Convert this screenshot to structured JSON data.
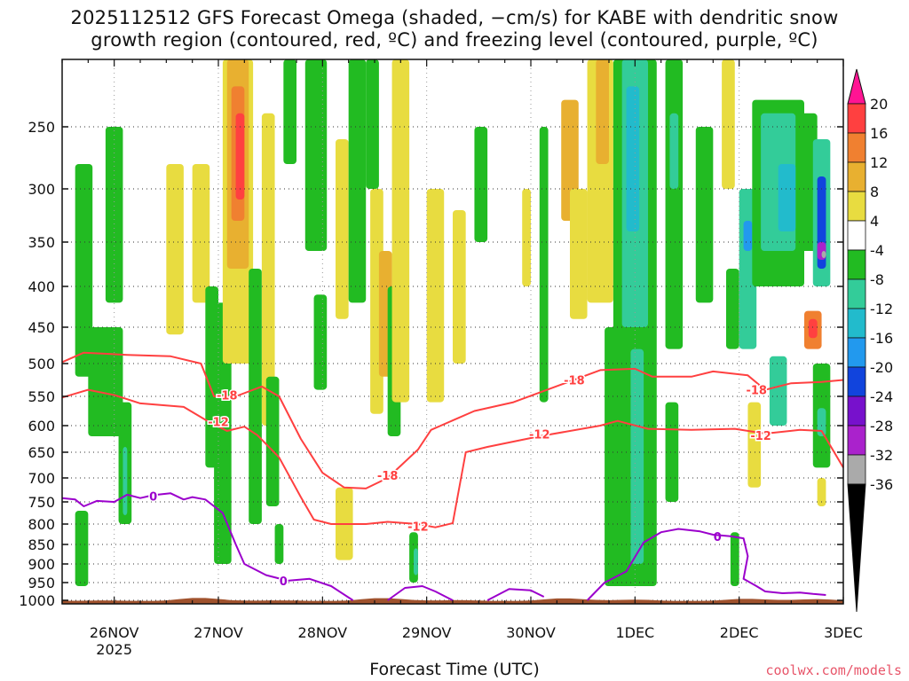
{
  "title_line1": "2025112512 GFS Forecast Omega (shaded, −cm/s) for KABE with dendritic snow",
  "title_line2": "growth region (contoured, red, ºC) and freezing level (contoured, purple, ºC)",
  "credit": "coolwx.com/models",
  "chart_data": {
    "type": "heatmap",
    "xlabel": "Forecast Time (UTC)",
    "ylabel": "",
    "x_ticks": [
      {
        "label": "26NOV",
        "sub": "2025",
        "hour": 12
      },
      {
        "label": "27NOV",
        "hour": 36
      },
      {
        "label": "28NOV",
        "hour": 60
      },
      {
        "label": "29NOV",
        "hour": 84
      },
      {
        "label": "30NOV",
        "hour": 108
      },
      {
        "label": "1DEC",
        "hour": 132
      },
      {
        "label": "2DEC",
        "hour": 156
      },
      {
        "label": "3DEC",
        "hour": 180
      }
    ],
    "xlim_hours": [
      0,
      180
    ],
    "y_ticks": [
      250,
      300,
      350,
      400,
      450,
      500,
      550,
      600,
      650,
      700,
      750,
      800,
      850,
      900,
      950,
      1000
    ],
    "ylim_hpa": [
      1025,
      200
    ],
    "ground_color": "#a0522d",
    "colorbar": {
      "ticks": [
        20,
        16,
        12,
        8,
        4,
        -4,
        -8,
        -12,
        -16,
        -20,
        -24,
        -28,
        -32,
        -36
      ],
      "colors": [
        "#ff1493",
        "#ff4040",
        "#f08030",
        "#e8b030",
        "#e8dc40",
        "#ffffff",
        "#22bb22",
        "#33cc99",
        "#22bbcc",
        "#2299ee",
        "#1144dd",
        "#7711cc",
        "#aa22cc",
        "#aaaaaa",
        "#000000"
      ]
    },
    "omega_regions": [
      {
        "t0": 3,
        "t1": 7,
        "p0": 280,
        "p1": 520,
        "v": -8
      },
      {
        "t0": 6,
        "t1": 14,
        "p0": 450,
        "p1": 620,
        "v": -8
      },
      {
        "t0": 10,
        "t1": 14,
        "p0": 250,
        "p1": 420,
        "v": -8
      },
      {
        "t0": 13,
        "t1": 16,
        "p0": 560,
        "p1": 800,
        "v": -8
      },
      {
        "t0": 14,
        "t1": 15,
        "p0": 640,
        "p1": 780,
        "v": -12
      },
      {
        "t0": 3,
        "t1": 6,
        "p0": 770,
        "p1": 960,
        "v": -8
      },
      {
        "t0": 24,
        "t1": 28,
        "p0": 280,
        "p1": 460,
        "v": 4
      },
      {
        "t0": 30,
        "t1": 34,
        "p0": 280,
        "p1": 420,
        "v": 4
      },
      {
        "t0": 33,
        "t1": 36,
        "p0": 400,
        "p1": 680,
        "v": -8
      },
      {
        "t0": 35,
        "t1": 39,
        "p0": 420,
        "p1": 900,
        "v": -8
      },
      {
        "t0": 37,
        "t1": 44,
        "p0": 200,
        "p1": 500,
        "v": 4
      },
      {
        "t0": 38,
        "t1": 43,
        "p0": 200,
        "p1": 380,
        "v": 8
      },
      {
        "t0": 39,
        "t1": 42,
        "p0": 220,
        "p1": 330,
        "v": 12
      },
      {
        "t0": 40,
        "t1": 42,
        "p0": 240,
        "p1": 310,
        "v": 16
      },
      {
        "t0": 43,
        "t1": 46,
        "p0": 380,
        "p1": 800,
        "v": -8
      },
      {
        "t0": 46,
        "t1": 49,
        "p0": 240,
        "p1": 600,
        "v": 4
      },
      {
        "t0": 47,
        "t1": 50,
        "p0": 520,
        "p1": 760,
        "v": -8
      },
      {
        "t0": 49,
        "t1": 51,
        "p0": 800,
        "p1": 900,
        "v": -8
      },
      {
        "t0": 51,
        "t1": 54,
        "p0": 200,
        "p1": 280,
        "v": -8
      },
      {
        "t0": 56,
        "t1": 61,
        "p0": 200,
        "p1": 360,
        "v": -8
      },
      {
        "t0": 58,
        "t1": 61,
        "p0": 410,
        "p1": 540,
        "v": -8
      },
      {
        "t0": 63,
        "t1": 66,
        "p0": 260,
        "p1": 440,
        "v": 4
      },
      {
        "t0": 63,
        "t1": 67,
        "p0": 720,
        "p1": 890,
        "v": 4
      },
      {
        "t0": 66,
        "t1": 70,
        "p0": 200,
        "p1": 420,
        "v": -8
      },
      {
        "t0": 70,
        "t1": 73,
        "p0": 200,
        "p1": 300,
        "v": -8
      },
      {
        "t0": 71,
        "t1": 74,
        "p0": 300,
        "p1": 580,
        "v": 4
      },
      {
        "t0": 73,
        "t1": 76,
        "p0": 360,
        "p1": 520,
        "v": 8
      },
      {
        "t0": 75,
        "t1": 78,
        "p0": 400,
        "p1": 620,
        "v": -8
      },
      {
        "t0": 76,
        "t1": 80,
        "p0": 200,
        "p1": 560,
        "v": 4
      },
      {
        "t0": 80,
        "t1": 82,
        "p0": 820,
        "p1": 950,
        "v": -8
      },
      {
        "t0": 81,
        "t1": 82,
        "p0": 860,
        "p1": 930,
        "v": -12
      },
      {
        "t0": 84,
        "t1": 88,
        "p0": 300,
        "p1": 560,
        "v": 4
      },
      {
        "t0": 90,
        "t1": 93,
        "p0": 320,
        "p1": 500,
        "v": 4
      },
      {
        "t0": 95,
        "t1": 98,
        "p0": 250,
        "p1": 350,
        "v": -8
      },
      {
        "t0": 106,
        "t1": 108,
        "p0": 300,
        "p1": 400,
        "v": 4
      },
      {
        "t0": 110,
        "t1": 112,
        "p0": 250,
        "p1": 560,
        "v": -8
      },
      {
        "t0": 115,
        "t1": 119,
        "p0": 230,
        "p1": 330,
        "v": 8
      },
      {
        "t0": 117,
        "t1": 121,
        "p0": 300,
        "p1": 440,
        "v": 4
      },
      {
        "t0": 121,
        "t1": 127,
        "p0": 200,
        "p1": 420,
        "v": 4
      },
      {
        "t0": 123,
        "t1": 126,
        "p0": 200,
        "p1": 280,
        "v": 8
      },
      {
        "t0": 125,
        "t1": 129,
        "p0": 450,
        "p1": 960,
        "v": -8
      },
      {
        "t0": 127,
        "t1": 137,
        "p0": 200,
        "p1": 960,
        "v": -8
      },
      {
        "t0": 129,
        "t1": 135,
        "p0": 200,
        "p1": 450,
        "v": -12
      },
      {
        "t0": 130,
        "t1": 133,
        "p0": 220,
        "p1": 340,
        "v": -16
      },
      {
        "t0": 131,
        "t1": 134,
        "p0": 480,
        "p1": 900,
        "v": -12
      },
      {
        "t0": 139,
        "t1": 143,
        "p0": 200,
        "p1": 480,
        "v": -8
      },
      {
        "t0": 140,
        "t1": 142,
        "p0": 240,
        "p1": 300,
        "v": -12
      },
      {
        "t0": 139,
        "t1": 142,
        "p0": 560,
        "p1": 750,
        "v": -8
      },
      {
        "t0": 146,
        "t1": 150,
        "p0": 250,
        "p1": 420,
        "v": -8
      },
      {
        "t0": 152,
        "t1": 155,
        "p0": 200,
        "p1": 300,
        "v": 4
      },
      {
        "t0": 153,
        "t1": 156,
        "p0": 380,
        "p1": 480,
        "v": -8
      },
      {
        "t0": 154,
        "t1": 156,
        "p0": 820,
        "p1": 960,
        "v": -8
      },
      {
        "t0": 156,
        "t1": 160,
        "p0": 300,
        "p1": 480,
        "v": -12
      },
      {
        "t0": 157,
        "t1": 159,
        "p0": 330,
        "p1": 360,
        "v": -20
      },
      {
        "t0": 158,
        "t1": 161,
        "p0": 560,
        "p1": 720,
        "v": 4
      },
      {
        "t0": 159,
        "t1": 171,
        "p0": 230,
        "p1": 400,
        "v": -8
      },
      {
        "t0": 161,
        "t1": 169,
        "p0": 240,
        "p1": 360,
        "v": -12
      },
      {
        "t0": 165,
        "t1": 169,
        "p0": 280,
        "p1": 340,
        "v": -16
      },
      {
        "t0": 163,
        "t1": 167,
        "p0": 490,
        "p1": 600,
        "v": -12
      },
      {
        "t0": 170,
        "t1": 174,
        "p0": 240,
        "p1": 360,
        "v": -8
      },
      {
        "t0": 171,
        "t1": 175,
        "p0": 430,
        "p1": 480,
        "v": 12
      },
      {
        "t0": 172,
        "t1": 174,
        "p0": 440,
        "p1": 465,
        "v": 16
      },
      {
        "t0": 173,
        "t1": 177,
        "p0": 260,
        "p1": 400,
        "v": -12
      },
      {
        "t0": 174,
        "t1": 176,
        "p0": 290,
        "p1": 380,
        "v": -24
      },
      {
        "t0": 174,
        "t1": 176,
        "p0": 350,
        "p1": 370,
        "v": -32
      },
      {
        "t0": 175,
        "t1": 176,
        "p0": 360,
        "p1": 368,
        "v": -36
      },
      {
        "t0": 173,
        "t1": 177,
        "p0": 500,
        "p1": 680,
        "v": -8
      },
      {
        "t0": 174,
        "t1": 176,
        "p0": 570,
        "p1": 620,
        "v": -12
      },
      {
        "t0": 174,
        "t1": 176,
        "p0": 700,
        "p1": 760,
        "v": 4
      }
    ],
    "contours": [
      {
        "label": "-18",
        "color": "#ff4040",
        "label_points": [
          [
            38,
            548
          ],
          [
            75,
            695
          ],
          [
            118,
            525
          ],
          [
            160,
            540
          ]
        ],
        "points": [
          [
            0,
            498
          ],
          [
            5,
            485
          ],
          [
            15,
            488
          ],
          [
            25,
            490
          ],
          [
            32,
            500
          ],
          [
            35,
            550
          ],
          [
            40,
            550
          ],
          [
            46,
            535
          ],
          [
            50,
            550
          ],
          [
            55,
            625
          ],
          [
            60,
            690
          ],
          [
            65,
            720
          ],
          [
            70,
            722
          ],
          [
            75,
            700
          ],
          [
            82,
            645
          ],
          [
            85,
            608
          ],
          [
            95,
            575
          ],
          [
            104,
            560
          ],
          [
            115,
            532
          ],
          [
            124,
            510
          ],
          [
            132,
            508
          ],
          [
            136,
            520
          ],
          [
            145,
            520
          ],
          [
            150,
            512
          ],
          [
            158,
            518
          ],
          [
            162,
            540
          ],
          [
            168,
            530
          ],
          [
            175,
            528
          ],
          [
            180,
            525
          ]
        ]
      },
      {
        "label": "-12",
        "color": "#ff4040",
        "label_points": [
          [
            36,
            593
          ],
          [
            82,
            805
          ],
          [
            110,
            616
          ],
          [
            161,
            618
          ]
        ],
        "points": [
          [
            0,
            552
          ],
          [
            6,
            540
          ],
          [
            12,
            548
          ],
          [
            18,
            562
          ],
          [
            28,
            568
          ],
          [
            33,
            590
          ],
          [
            38,
            610
          ],
          [
            42,
            602
          ],
          [
            45,
            618
          ],
          [
            50,
            660
          ],
          [
            55,
            740
          ],
          [
            58,
            790
          ],
          [
            62,
            800
          ],
          [
            70,
            800
          ],
          [
            75,
            795
          ],
          [
            82,
            800
          ],
          [
            86,
            808
          ],
          [
            90,
            798
          ],
          [
            93,
            650
          ],
          [
            98,
            640
          ],
          [
            104,
            630
          ],
          [
            110,
            620
          ],
          [
            124,
            600
          ],
          [
            128,
            592
          ],
          [
            135,
            606
          ],
          [
            145,
            608
          ],
          [
            155,
            606
          ],
          [
            162,
            615
          ],
          [
            170,
            608
          ],
          [
            175,
            610
          ],
          [
            180,
            680
          ]
        ]
      },
      {
        "label": "0",
        "color": "#9b00cc",
        "label_points": [
          [
            21,
            738
          ],
          [
            51,
            945
          ],
          [
            151,
            830
          ]
        ],
        "points": [
          [
            0,
            742
          ],
          [
            3,
            745
          ],
          [
            5,
            760
          ],
          [
            8,
            748
          ],
          [
            12,
            750
          ],
          [
            15,
            735
          ],
          [
            18,
            742
          ],
          [
            21,
            736
          ],
          [
            25,
            732
          ],
          [
            28,
            745
          ],
          [
            30,
            740
          ],
          [
            33,
            745
          ],
          [
            37,
            775
          ],
          [
            40,
            850
          ],
          [
            42,
            900
          ],
          [
            47,
            930
          ],
          [
            52,
            945
          ],
          [
            57,
            940
          ],
          [
            62,
            960
          ],
          [
            67,
            1000
          ]
        ]
      },
      {
        "color": "#9b00cc",
        "label": "",
        "label_points": [],
        "points": [
          [
            75,
            1000
          ],
          [
            79,
            965
          ],
          [
            83,
            960
          ],
          [
            86,
            975
          ],
          [
            90,
            1000
          ]
        ]
      },
      {
        "color": "#9b00cc",
        "label": "",
        "label_points": [],
        "points": [
          [
            98,
            1000
          ],
          [
            103,
            968
          ],
          [
            108,
            972
          ],
          [
            111,
            990
          ]
        ]
      },
      {
        "color": "#9b00cc",
        "label": "",
        "label_points": [],
        "points": [
          [
            121,
            1000
          ],
          [
            125,
            950
          ],
          [
            130,
            920
          ],
          [
            134,
            845
          ],
          [
            138,
            820
          ],
          [
            142,
            812
          ],
          [
            147,
            818
          ],
          [
            150,
            826
          ],
          [
            154,
            830
          ],
          [
            157,
            835
          ],
          [
            158,
            880
          ],
          [
            157,
            940
          ],
          [
            160,
            960
          ],
          [
            162,
            975
          ],
          [
            166,
            980
          ],
          [
            170,
            978
          ],
          [
            173,
            982
          ],
          [
            176,
            985
          ]
        ]
      }
    ]
  }
}
